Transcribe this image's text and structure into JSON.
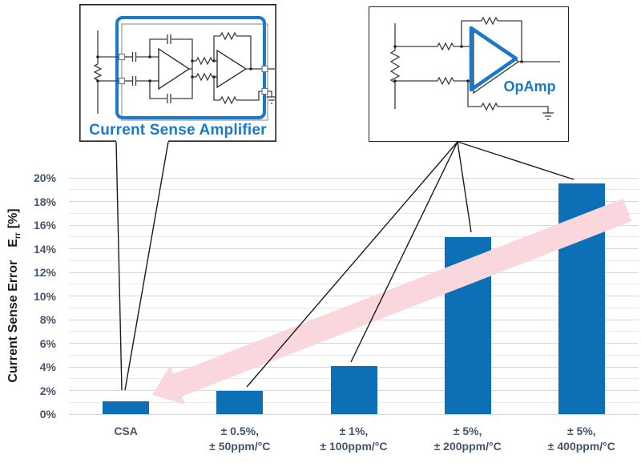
{
  "callouts": {
    "csa_label": "Current Sense Amplifier",
    "opamp_label": "OpAmp"
  },
  "chart_data": {
    "type": "bar",
    "title": "",
    "ylabel_text": "Current Sense Error",
    "ylabel_symbol": "E",
    "ylabel_subscript": "rr",
    "ylabel_unit": "[%]",
    "categories": [
      [
        "CSA"
      ],
      [
        "± 0.5%,",
        "± 50ppm/°C"
      ],
      [
        "± 1%,",
        "± 100ppm/°C"
      ],
      [
        "± 5%,",
        "± 200ppm/°C"
      ],
      [
        "± 5%,",
        "± 400ppm/°C"
      ]
    ],
    "values": [
      1.1,
      2.0,
      4.1,
      15.0,
      19.5
    ],
    "value_unit": "%",
    "ylim": [
      0,
      20
    ],
    "ytick_labels": [
      "0%",
      "2%",
      "4%",
      "6%",
      "8%",
      "10%",
      "12%",
      "14%",
      "16%",
      "18%",
      "20%"
    ],
    "grid": "horizontal, minor line every 1%, label every 2%",
    "legend": "none",
    "bar_color": "#0D70B7",
    "accent_blue": "#1A79C8",
    "annotations": [
      {
        "type": "block-arrow",
        "points_toward": "CSA bar (lower error)",
        "pink_color": "#FAD6DD"
      },
      {
        "type": "callout-lines",
        "from": "Current Sense Amplifier box",
        "to": "CSA bar"
      },
      {
        "type": "callout-lines",
        "from": "OpAmp box",
        "to": "all four OpAmp bars"
      }
    ]
  }
}
